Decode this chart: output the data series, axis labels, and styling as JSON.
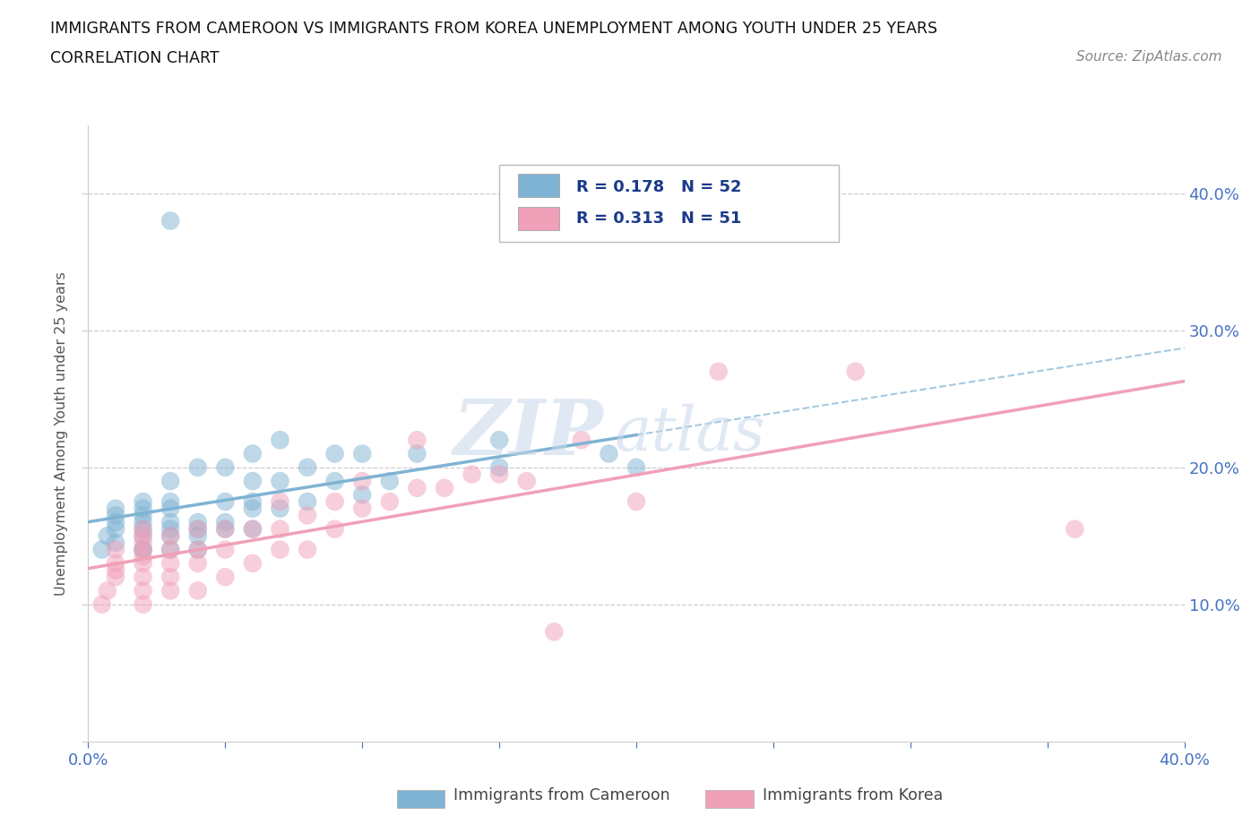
{
  "title_line1": "IMMIGRANTS FROM CAMEROON VS IMMIGRANTS FROM KOREA UNEMPLOYMENT AMONG YOUTH UNDER 25 YEARS",
  "title_line2": "CORRELATION CHART",
  "source": "Source: ZipAtlas.com",
  "ylabel": "Unemployment Among Youth under 25 years",
  "xlim": [
    0.0,
    0.4
  ],
  "ylim": [
    0.0,
    0.45
  ],
  "cameroon_color": "#7fb3d3",
  "korea_color": "#f0a0b8",
  "cameroon_R": 0.178,
  "cameroon_N": 52,
  "korea_R": 0.313,
  "korea_N": 51,
  "legend_R_color": "#1a3a8a",
  "watermark_zip": "ZIP",
  "watermark_atlas": "atlas",
  "cam_trendline_solid_end": 0.2,
  "cam_trendline_y0": 0.17,
  "cam_trendline_y40": 0.285,
  "kor_trendline_y0": 0.115,
  "kor_trendline_y40": 0.255,
  "cameroon_x": [
    0.005,
    0.007,
    0.01,
    0.01,
    0.01,
    0.01,
    0.01,
    0.02,
    0.02,
    0.02,
    0.02,
    0.02,
    0.02,
    0.02,
    0.02,
    0.03,
    0.03,
    0.03,
    0.03,
    0.03,
    0.03,
    0.03,
    0.04,
    0.04,
    0.04,
    0.04,
    0.04,
    0.05,
    0.05,
    0.05,
    0.05,
    0.06,
    0.06,
    0.06,
    0.06,
    0.06,
    0.07,
    0.07,
    0.07,
    0.08,
    0.08,
    0.09,
    0.09,
    0.1,
    0.1,
    0.11,
    0.12,
    0.15,
    0.15,
    0.19,
    0.2,
    0.03
  ],
  "cameroon_y": [
    0.14,
    0.15,
    0.145,
    0.155,
    0.16,
    0.165,
    0.17,
    0.14,
    0.14,
    0.15,
    0.155,
    0.16,
    0.165,
    0.17,
    0.175,
    0.14,
    0.15,
    0.155,
    0.16,
    0.17,
    0.175,
    0.19,
    0.14,
    0.15,
    0.155,
    0.16,
    0.2,
    0.155,
    0.16,
    0.175,
    0.2,
    0.155,
    0.17,
    0.175,
    0.19,
    0.21,
    0.17,
    0.19,
    0.22,
    0.175,
    0.2,
    0.19,
    0.21,
    0.18,
    0.21,
    0.19,
    0.21,
    0.22,
    0.2,
    0.21,
    0.2,
    0.38
  ],
  "korea_x": [
    0.005,
    0.007,
    0.01,
    0.01,
    0.01,
    0.01,
    0.02,
    0.02,
    0.02,
    0.02,
    0.02,
    0.02,
    0.02,
    0.02,
    0.02,
    0.03,
    0.03,
    0.03,
    0.03,
    0.03,
    0.04,
    0.04,
    0.04,
    0.04,
    0.05,
    0.05,
    0.05,
    0.06,
    0.06,
    0.07,
    0.07,
    0.07,
    0.08,
    0.08,
    0.09,
    0.09,
    0.1,
    0.1,
    0.11,
    0.12,
    0.12,
    0.13,
    0.14,
    0.15,
    0.16,
    0.17,
    0.18,
    0.2,
    0.23,
    0.28,
    0.36
  ],
  "korea_y": [
    0.1,
    0.11,
    0.12,
    0.125,
    0.13,
    0.14,
    0.1,
    0.11,
    0.12,
    0.13,
    0.135,
    0.14,
    0.145,
    0.15,
    0.155,
    0.11,
    0.12,
    0.13,
    0.14,
    0.15,
    0.11,
    0.13,
    0.14,
    0.155,
    0.12,
    0.14,
    0.155,
    0.13,
    0.155,
    0.14,
    0.155,
    0.175,
    0.14,
    0.165,
    0.155,
    0.175,
    0.17,
    0.19,
    0.175,
    0.185,
    0.22,
    0.185,
    0.195,
    0.195,
    0.19,
    0.08,
    0.22,
    0.175,
    0.27,
    0.27,
    0.155
  ]
}
